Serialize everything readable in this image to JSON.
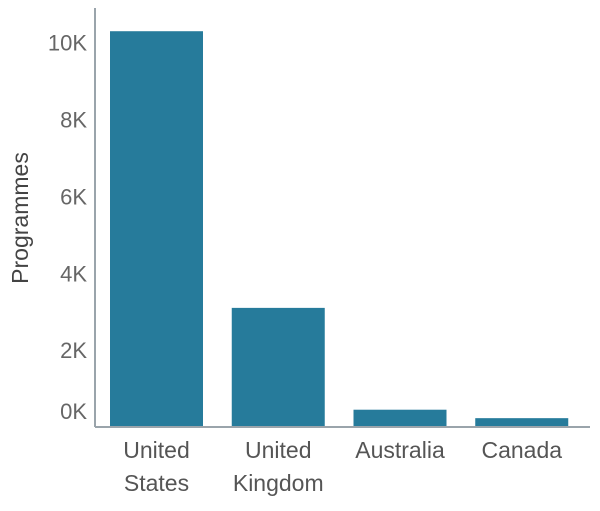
{
  "chart_data": {
    "type": "bar",
    "categories": [
      [
        "United",
        "States"
      ],
      [
        "United",
        "Kingdom"
      ],
      [
        "Australia"
      ],
      [
        "Canada"
      ]
    ],
    "values": [
      10300,
      3100,
      450,
      230
    ],
    "ylabel": "Programmes",
    "xlabel": "",
    "ylim": [
      0,
      10800
    ],
    "yticks": [
      {
        "value": 0,
        "label": "0K"
      },
      {
        "value": 2000,
        "label": "2K"
      },
      {
        "value": 4000,
        "label": "4K"
      },
      {
        "value": 6000,
        "label": "6K"
      },
      {
        "value": 8000,
        "label": "8K"
      },
      {
        "value": 10000,
        "label": "10K"
      }
    ],
    "bar_color": "#267b9b",
    "grid": false
  }
}
